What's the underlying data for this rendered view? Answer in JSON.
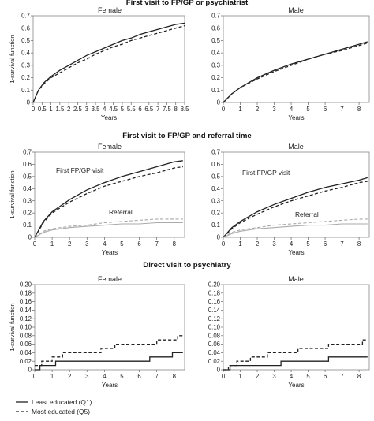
{
  "chart_data": [
    {
      "type": "line",
      "section_title": "First visit to FP/GP or psychiatrist",
      "title": "Female",
      "xlabel": "Years",
      "ylabel": "1-survival function",
      "x_ticks": [
        "0",
        "0.5",
        "1",
        "1.5",
        "2",
        "2.5",
        "3",
        "3.5",
        "4",
        "4.5",
        "5",
        "5.5",
        "6",
        "6.5",
        "7",
        "7.5",
        "8",
        "8.5"
      ],
      "y_ticks": [
        "0",
        "0.1",
        "0.2",
        "0.3",
        "0.4",
        "0.5",
        "0.6",
        "0.7"
      ],
      "xlim": [
        0,
        8.5
      ],
      "ylim": [
        0,
        0.7
      ],
      "series": [
        {
          "name": "Least educated (Q1)",
          "style": "solid",
          "color": "#222222",
          "x": [
            0,
            0.3,
            0.6,
            1,
            1.5,
            2,
            2.5,
            3,
            3.5,
            4,
            4.5,
            5,
            5.5,
            6,
            6.5,
            7,
            7.5,
            8,
            8.5
          ],
          "y": [
            0,
            0.1,
            0.16,
            0.21,
            0.26,
            0.3,
            0.34,
            0.38,
            0.41,
            0.44,
            0.47,
            0.5,
            0.52,
            0.55,
            0.57,
            0.59,
            0.61,
            0.63,
            0.64
          ]
        },
        {
          "name": "Most educated (Q5)",
          "style": "dashed",
          "color": "#222222",
          "x": [
            0,
            0.3,
            0.6,
            1,
            1.5,
            2,
            2.5,
            3,
            3.5,
            4,
            4.5,
            5,
            5.5,
            6,
            6.5,
            7,
            7.5,
            8,
            8.5
          ],
          "y": [
            0,
            0.1,
            0.15,
            0.2,
            0.24,
            0.28,
            0.32,
            0.35,
            0.39,
            0.42,
            0.45,
            0.47,
            0.5,
            0.52,
            0.54,
            0.56,
            0.58,
            0.6,
            0.62
          ]
        }
      ]
    },
    {
      "type": "line",
      "title": "Male",
      "xlabel": "Years",
      "x_ticks": [
        "0",
        "1",
        "2",
        "3",
        "4",
        "5",
        "6",
        "7",
        "8"
      ],
      "y_ticks": [
        "0",
        "0.1",
        "0.2",
        "0.3",
        "0.4",
        "0.5",
        "0.6",
        "0.7"
      ],
      "xlim": [
        0,
        8.6
      ],
      "ylim": [
        0,
        0.7
      ],
      "series": [
        {
          "name": "Least educated (Q1)",
          "style": "solid",
          "color": "#222222",
          "x": [
            0,
            0.5,
            1,
            2,
            3,
            4,
            5,
            6,
            7,
            8,
            8.5
          ],
          "y": [
            0,
            0.07,
            0.12,
            0.2,
            0.26,
            0.31,
            0.35,
            0.39,
            0.43,
            0.47,
            0.49
          ]
        },
        {
          "name": "Most educated (Q5)",
          "style": "dashed",
          "color": "#222222",
          "x": [
            0,
            0.5,
            1,
            2,
            3,
            4,
            5,
            6,
            7,
            8,
            8.5
          ],
          "y": [
            0,
            0.07,
            0.12,
            0.19,
            0.25,
            0.3,
            0.35,
            0.39,
            0.42,
            0.46,
            0.48
          ]
        }
      ]
    },
    {
      "type": "line",
      "section_title": "First visit to FP/GP and referral time",
      "title": "Female",
      "xlabel": "Years",
      "ylabel": "1-survival function",
      "x_ticks": [
        "0",
        "1",
        "2",
        "3",
        "4",
        "5",
        "6",
        "7",
        "8"
      ],
      "y_ticks": [
        "0",
        "0.1",
        "0.2",
        "0.3",
        "0.4",
        "0.5",
        "0.6",
        "0.7"
      ],
      "xlim": [
        0,
        8.6
      ],
      "ylim": [
        0,
        0.7
      ],
      "annotations": [
        "First FP/GP visit",
        "Referral"
      ],
      "series": [
        {
          "name": "Least educated (Q1) — First FP/GP visit",
          "style": "solid",
          "color": "#222222",
          "x": [
            0,
            0.5,
            1,
            2,
            3,
            4,
            5,
            6,
            7,
            8,
            8.5
          ],
          "y": [
            0,
            0.13,
            0.21,
            0.31,
            0.39,
            0.45,
            0.5,
            0.54,
            0.58,
            0.62,
            0.63
          ]
        },
        {
          "name": "Most educated (Q5) — First FP/GP visit",
          "style": "dashed",
          "color": "#222222",
          "x": [
            0,
            0.5,
            1,
            2,
            3,
            4,
            5,
            6,
            7,
            8,
            8.5
          ],
          "y": [
            0,
            0.12,
            0.2,
            0.29,
            0.36,
            0.42,
            0.46,
            0.5,
            0.53,
            0.57,
            0.58
          ]
        },
        {
          "name": "Least educated (Q1) — Referral",
          "style": "solid",
          "color": "#aaaaaa",
          "x": [
            0,
            0.5,
            1,
            2,
            3,
            4,
            5,
            6,
            7,
            8,
            8.5
          ],
          "y": [
            0,
            0.04,
            0.06,
            0.08,
            0.09,
            0.1,
            0.11,
            0.11,
            0.12,
            0.12,
            0.12
          ]
        },
        {
          "name": "Most educated (Q5) — Referral",
          "style": "dashed",
          "color": "#aaaaaa",
          "x": [
            0,
            0.5,
            1,
            2,
            3,
            4,
            5,
            6,
            7,
            8,
            8.5
          ],
          "y": [
            0,
            0.05,
            0.07,
            0.09,
            0.1,
            0.12,
            0.13,
            0.14,
            0.15,
            0.15,
            0.15
          ]
        }
      ]
    },
    {
      "type": "line",
      "title": "Male",
      "xlabel": "Years",
      "x_ticks": [
        "0",
        "1",
        "2",
        "3",
        "4",
        "5",
        "6",
        "7",
        "8"
      ],
      "y_ticks": [
        "0",
        "0.1",
        "0.2",
        "0.3",
        "0.4",
        "0.5",
        "0.6",
        "0.7"
      ],
      "xlim": [
        0,
        8.6
      ],
      "ylim": [
        0,
        0.7
      ],
      "annotations": [
        "First FP/GP visit",
        "Referral"
      ],
      "series": [
        {
          "name": "Least educated (Q1) — First FP/GP visit",
          "style": "solid",
          "color": "#222222",
          "x": [
            0,
            0.5,
            1,
            2,
            3,
            4,
            5,
            6,
            7,
            8,
            8.5
          ],
          "y": [
            0,
            0.08,
            0.13,
            0.21,
            0.27,
            0.32,
            0.37,
            0.41,
            0.44,
            0.47,
            0.49
          ]
        },
        {
          "name": "Most educated (Q5) — First FP/GP visit",
          "style": "dashed",
          "color": "#222222",
          "x": [
            0,
            0.5,
            1,
            2,
            3,
            4,
            5,
            6,
            7,
            8,
            8.5
          ],
          "y": [
            0,
            0.07,
            0.12,
            0.19,
            0.25,
            0.3,
            0.34,
            0.38,
            0.41,
            0.45,
            0.46
          ]
        },
        {
          "name": "Least educated (Q1) — Referral",
          "style": "solid",
          "color": "#aaaaaa",
          "x": [
            0,
            0.5,
            1,
            2,
            3,
            4,
            5,
            6,
            7,
            8,
            8.5
          ],
          "y": [
            0,
            0.03,
            0.05,
            0.07,
            0.08,
            0.09,
            0.1,
            0.1,
            0.11,
            0.11,
            0.11
          ]
        },
        {
          "name": "Most educated (Q5) — Referral",
          "style": "dashed",
          "color": "#aaaaaa",
          "x": [
            0,
            0.5,
            1,
            2,
            3,
            4,
            5,
            6,
            7,
            8,
            8.5
          ],
          "y": [
            0,
            0.04,
            0.06,
            0.08,
            0.1,
            0.11,
            0.12,
            0.13,
            0.14,
            0.15,
            0.15
          ]
        }
      ]
    },
    {
      "type": "line",
      "section_title": "Direct visit to psychiatry",
      "title": "Female",
      "xlabel": "Years",
      "ylabel": "1-survival function",
      "x_ticks": [
        "0",
        "1",
        "2",
        "3",
        "4",
        "5",
        "6",
        "7",
        "8"
      ],
      "y_ticks": [
        "0",
        "0.02",
        "0.04",
        "0.06",
        "0.08",
        "0.10",
        "0.12",
        "0.14",
        "0.16",
        "0.18",
        "0.20"
      ],
      "xlim": [
        0,
        8.6
      ],
      "ylim": [
        0,
        0.2
      ],
      "step": true,
      "series": [
        {
          "name": "Least educated (Q1)",
          "style": "solid",
          "color": "#222222",
          "x": [
            0,
            0.3,
            0.7,
            1.2,
            1.8,
            6.6,
            7.9,
            8.5
          ],
          "y": [
            0,
            0.01,
            0.01,
            0.02,
            0.02,
            0.03,
            0.04,
            0.04
          ]
        },
        {
          "name": "Most educated (Q5)",
          "style": "dashed",
          "color": "#222222",
          "x": [
            0,
            0.4,
            1,
            1.6,
            2.2,
            3.8,
            4.6,
            7,
            8.2,
            8.5
          ],
          "y": [
            0.01,
            0.02,
            0.03,
            0.04,
            0.04,
            0.05,
            0.06,
            0.07,
            0.08,
            0.08
          ]
        }
      ]
    },
    {
      "type": "line",
      "title": "Male",
      "xlabel": "Years",
      "x_ticks": [
        "0",
        "1",
        "2",
        "3",
        "4",
        "5",
        "6",
        "7",
        "8"
      ],
      "y_ticks": [
        "0",
        "0.02",
        "0.04",
        "0.06",
        "0.08",
        "0.10",
        "0.12",
        "0.14",
        "0.16",
        "0.18",
        "0.20"
      ],
      "xlim": [
        0,
        8.6
      ],
      "ylim": [
        0,
        0.2
      ],
      "step": true,
      "series": [
        {
          "name": "Least educated (Q1)",
          "style": "solid",
          "color": "#222222",
          "x": [
            0,
            0.4,
            0.8,
            2.4,
            3.4,
            5.2,
            6.2,
            8.5
          ],
          "y": [
            0,
            0.01,
            0.01,
            0.01,
            0.02,
            0.02,
            0.03,
            0.03
          ]
        },
        {
          "name": "Most educated (Q5)",
          "style": "dashed",
          "color": "#222222",
          "x": [
            0,
            0.3,
            0.8,
            1.6,
            2.6,
            4.4,
            6.2,
            7.4,
            8.2,
            8.5
          ],
          "y": [
            0,
            0.01,
            0.02,
            0.03,
            0.04,
            0.05,
            0.06,
            0.06,
            0.07,
            0.07
          ]
        }
      ]
    }
  ],
  "legend": {
    "items": [
      {
        "label": "Least educated (Q1)",
        "style": "solid"
      },
      {
        "label": "Most educated (Q5)",
        "style": "dashed"
      }
    ]
  }
}
